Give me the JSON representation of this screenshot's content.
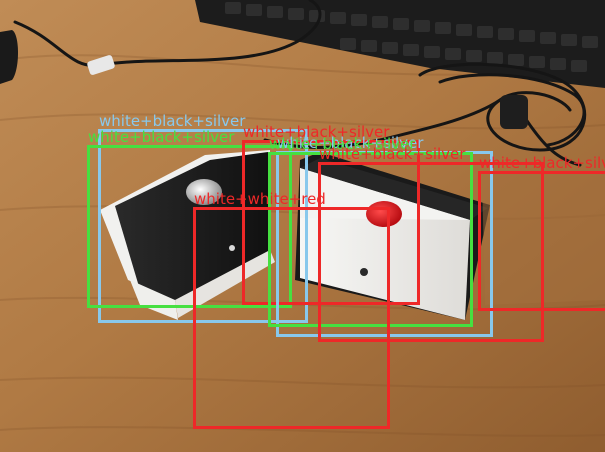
{
  "colors": {
    "blue": "#88c8ec",
    "green": "#46e040",
    "red": "#ee2828"
  },
  "detections": [
    {
      "label": "white+black+silver",
      "color": "blue"
    },
    {
      "label": "white+black+silver",
      "color": "green"
    },
    {
      "label": "white+black+silver",
      "color": "red"
    },
    {
      "label": "white+black+silver",
      "color": "blue"
    },
    {
      "label": "white+black+silver",
      "color": "green"
    },
    {
      "label": "white+black+silver",
      "color": "red"
    },
    {
      "label": "white+black+silver",
      "color": "red"
    },
    {
      "label": "white+white+red",
      "color": "red"
    }
  ]
}
